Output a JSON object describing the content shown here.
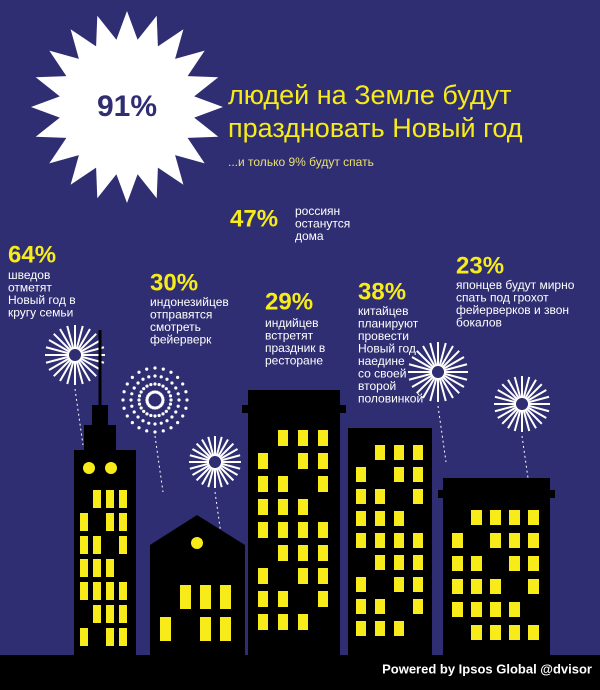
{
  "headline": {
    "stat": "91%",
    "lines": [
      "людей на Земле будут",
      "праздновать Новый год"
    ],
    "subtext": "...и только 9% будут спать"
  },
  "facts": [
    {
      "stat": "47%",
      "lines": [
        "россиян",
        "останутся",
        "дома"
      ]
    },
    {
      "stat": "64%",
      "lines": [
        "шведов",
        "отметят",
        "Новый год в",
        "кругу семьи"
      ]
    },
    {
      "stat": "30%",
      "lines": [
        "индонезийцев",
        "отправятся",
        "смотреть",
        "фейерверк"
      ]
    },
    {
      "stat": "29%",
      "lines": [
        "индийцев",
        "встретят",
        "праздник в",
        "ресторане"
      ]
    },
    {
      "stat": "38%",
      "lines": [
        "китайцев",
        "планируют",
        "провести",
        "Новый год",
        "наедине",
        "со своей",
        "второй",
        "половинкой"
      ]
    },
    {
      "stat": "23%",
      "lines": [
        "японцев будут мирно",
        "спать под грохот",
        "фейерверков и звон",
        "бокалов"
      ]
    }
  ],
  "footer": "Powered by Ipsos Global @dvisor"
}
